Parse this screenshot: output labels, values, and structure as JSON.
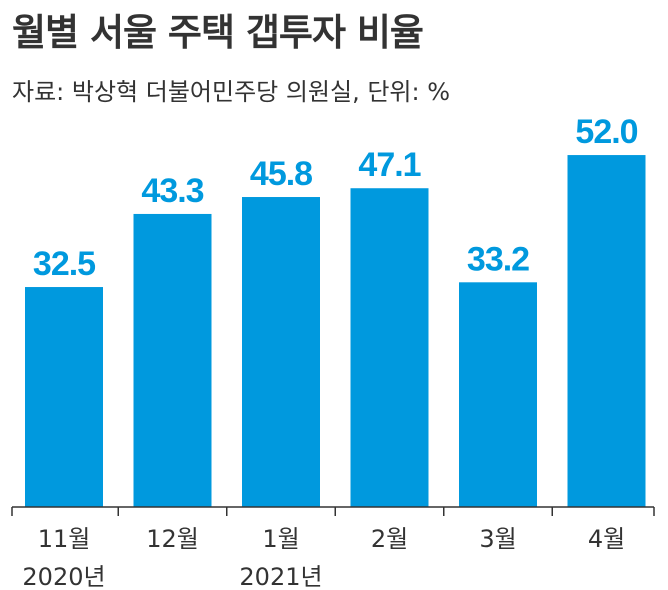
{
  "title": "월별 서울 주택 갭투자 비율",
  "subtitle": "자료: 박상혁 더불어민주당 의원실, 단위: %",
  "colors": {
    "bar": "#0099de",
    "label": "#0099de",
    "axis": "#333333",
    "text": "#333333"
  },
  "chart_data": {
    "type": "bar",
    "categories": [
      "11월",
      "12월",
      "1월",
      "2월",
      "3월",
      "4월"
    ],
    "year_labels": [
      "2020년",
      "",
      "2021년",
      "",
      "",
      ""
    ],
    "values": [
      32.5,
      43.3,
      45.8,
      47.1,
      33.2,
      52.0
    ],
    "value_labels": [
      "32.5",
      "43.3",
      "45.8",
      "47.1",
      "33.2",
      "52.0"
    ],
    "ylim": [
      0,
      60
    ],
    "grid": false,
    "legend": "none"
  }
}
